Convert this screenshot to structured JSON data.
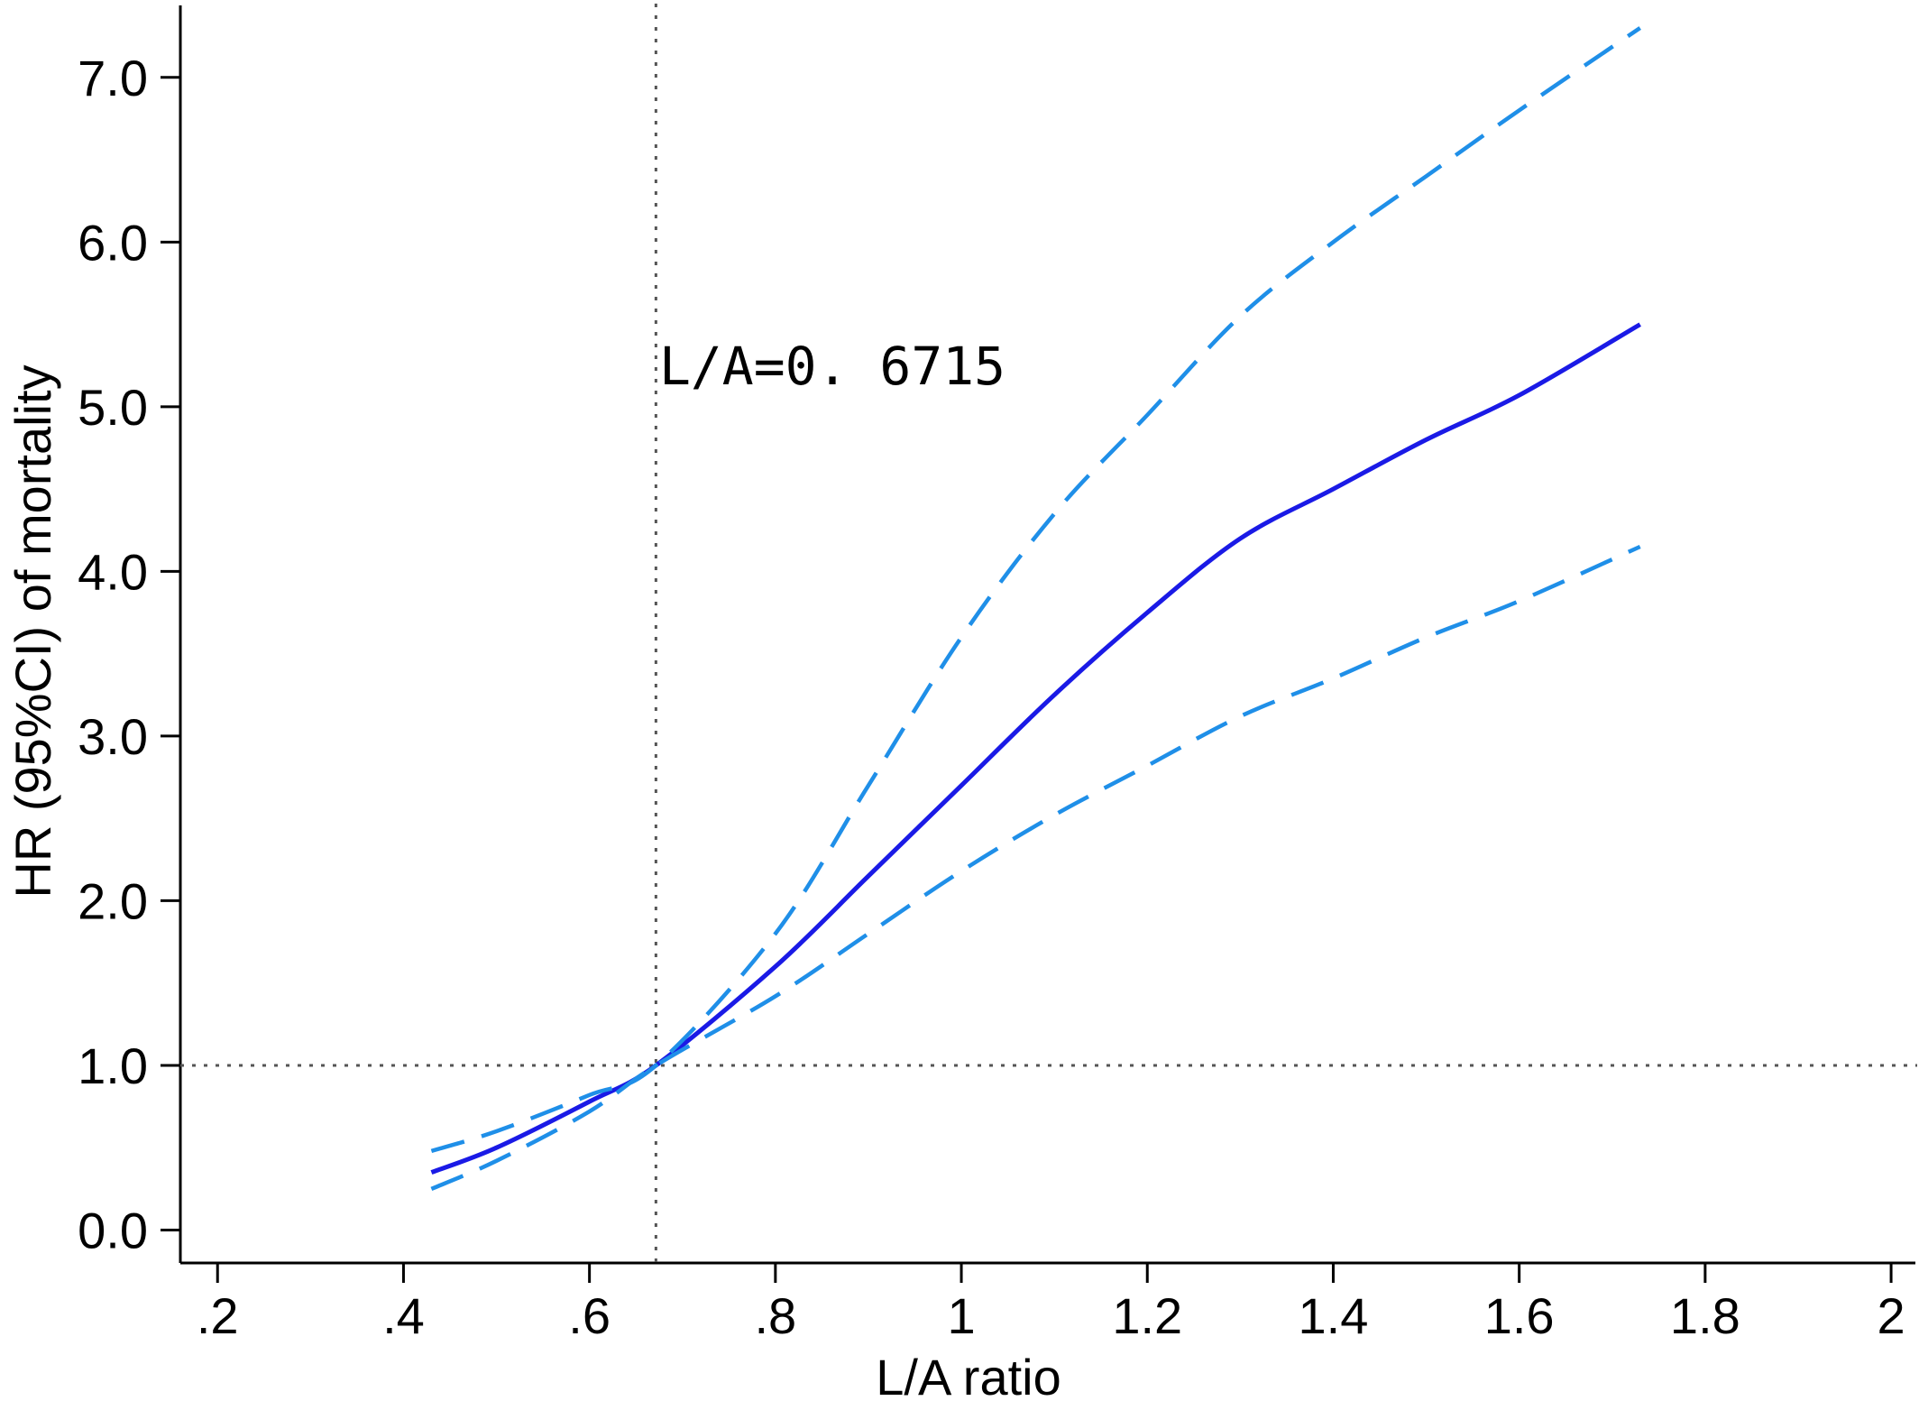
{
  "chart_data": {
    "type": "line",
    "title": "",
    "xlabel": "L/A ratio",
    "ylabel": "HR (95%CI) of mortality",
    "xlim": [
      0.16,
      2.03
    ],
    "ylim": [
      -0.2,
      7.47
    ],
    "x_ticks": [
      0.2,
      0.4,
      0.6,
      0.8,
      1.0,
      1.2,
      1.4,
      1.6,
      1.8,
      2.0
    ],
    "x_tick_labels": [
      ".2",
      ".4",
      ".6",
      ".8",
      "1",
      "1.2",
      "1.4",
      "1.6",
      "1.8",
      "2"
    ],
    "y_ticks": [
      0,
      1,
      2,
      3,
      4,
      5,
      6,
      7
    ],
    "y_tick_labels": [
      "0.0",
      "1.0",
      "2.0",
      "3.0",
      "4.0",
      "5.0",
      "6.0",
      "7.0"
    ],
    "grid": false,
    "legend": "none",
    "reference_lines": [
      {
        "axis": "x",
        "value": 0.6715,
        "style": "dotted"
      },
      {
        "axis": "y",
        "value": 1.0,
        "style": "dotted"
      }
    ],
    "annotations": [
      {
        "text": "L/A=0. 6715",
        "x": 0.675,
        "y": 5.3
      }
    ],
    "series": [
      {
        "style": "solid",
        "color": "#1a1ae6",
        "x": [
          0.43,
          0.5,
          0.6,
          0.6715,
          0.8,
          0.9,
          1.0,
          1.1,
          1.2,
          1.3,
          1.4,
          1.5,
          1.6,
          1.73
        ],
        "y": [
          0.35,
          0.5,
          0.78,
          1.0,
          1.6,
          2.15,
          2.7,
          3.25,
          3.75,
          4.2,
          4.5,
          4.8,
          5.07,
          5.5
        ]
      },
      {
        "style": "dashed",
        "color": "#1f8fe8",
        "x": [
          0.43,
          0.5,
          0.6,
          0.6715,
          0.8,
          0.9,
          1.0,
          1.1,
          1.2,
          1.3,
          1.4,
          1.5,
          1.6,
          1.73
        ],
        "y": [
          0.48,
          0.6,
          0.82,
          1.0,
          1.8,
          2.7,
          3.6,
          4.35,
          4.95,
          5.55,
          6.0,
          6.4,
          6.8,
          7.3
        ]
      },
      {
        "style": "dashed",
        "color": "#1f8fe8",
        "x": [
          0.43,
          0.5,
          0.6,
          0.6715,
          0.8,
          0.9,
          1.0,
          1.1,
          1.2,
          1.3,
          1.4,
          1.5,
          1.6,
          1.73
        ],
        "y": [
          0.25,
          0.42,
          0.72,
          1.0,
          1.42,
          1.8,
          2.18,
          2.52,
          2.82,
          3.12,
          3.35,
          3.6,
          3.82,
          4.15
        ]
      }
    ]
  }
}
